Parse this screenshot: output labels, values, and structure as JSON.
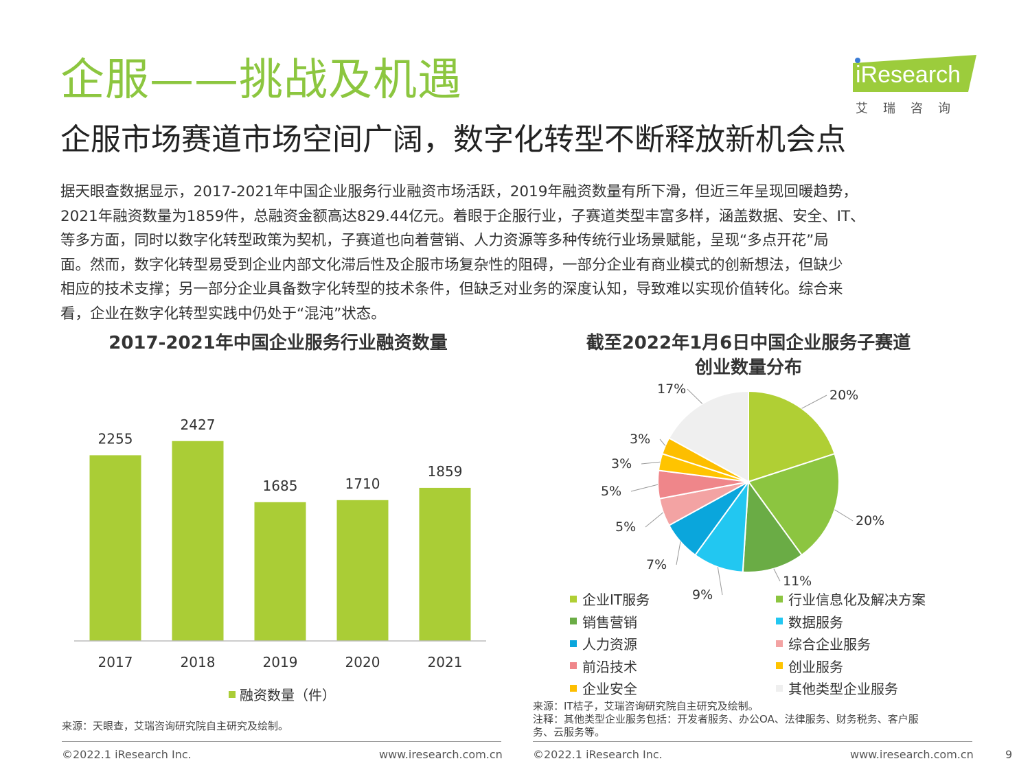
{
  "header": {
    "title": "企服——挑战及机遇",
    "subtitle": "企服市场赛道市场空间广阔，数字化转型不断释放新机会点"
  },
  "logo": {
    "text": "iResearch",
    "cn": "艾瑞咨询",
    "band_color": "#9ccc3c"
  },
  "paragraph": [
    "据天眼查数据显示，2017-2021年中国企业服务行业融资市场活跃，2019年融资数量有所下滑，但近三年呈现回暖趋势，",
    "2021年融资数量为1859件，总融资金额高达829.44亿元。着眼于企服行业，子赛道类型丰富多样，涵盖数据、安全、IT、",
    "等多方面，同时以数字化转型政策为契机，子赛道也向着营销、人力资源等多种传统行业场景赋能，呈现“多点开花”局",
    "面。然而，数字化转型易受到企业内部文化滞后性及企服市场复杂性的阻碍，一部分企业有商业模式的创新想法，但缺少",
    "相应的技术支撑；另一部分企业具备数字化转型的技术条件，但缺乏对业务的深度认知，导致难以实现价值转化。综合来",
    "看，企业在数字化转型实践中仍处于“混沌”状态。"
  ],
  "chart_data": [
    {
      "type": "bar",
      "title": "2017-2021年中国企业服务行业融资数量",
      "categories": [
        "2017",
        "2018",
        "2019",
        "2020",
        "2021"
      ],
      "series": [
        {
          "name": "融资数量（件）",
          "values": [
            2255,
            2427,
            1685,
            1710,
            1859
          ],
          "color": "#aacd36"
        }
      ],
      "value_labels": [
        "2255",
        "2427",
        "1685",
        "1710",
        "1859"
      ],
      "ylim": [
        0,
        2700
      ],
      "grid": false,
      "legend": "bottom"
    },
    {
      "type": "pie",
      "title_line1": "截至2022年1月6日中国企业服务子赛道",
      "title_line2": "创业数量分布",
      "labels": [
        "企业IT服务",
        "行业信息化及解决方案",
        "销售营销",
        "数据服务",
        "人力资源",
        "综合企业服务",
        "前沿技术",
        "创业服务",
        "企业安全",
        "其他类型企业服务"
      ],
      "values": [
        20,
        20,
        11,
        9,
        7,
        5,
        5,
        3,
        3,
        17
      ],
      "value_labels": [
        "20%",
        "20%",
        "11%",
        "9%",
        "7%",
        "5%",
        "5%",
        "3%",
        "3%",
        "17%"
      ],
      "colors": [
        "#b0cf34",
        "#8cc540",
        "#6aac45",
        "#22c7f1",
        "#0aa6dc",
        "#f3a3a3",
        "#ef868a",
        "#ffc400",
        "#fdbe00",
        "#efefef"
      ],
      "legend": "bottom"
    }
  ],
  "sources": {
    "left": "来源：天眼查，艾瑞咨询研究院自主研究及绘制。",
    "right_line1": "来源：IT桔子，艾瑞咨询研究院自主研究及绘制。",
    "right_line2": "注释：其他类型企业服务包括：开发者服务、办公OA、法律服务、财务税务、客户服",
    "right_line3": "务、云服务等。"
  },
  "footer": {
    "copyright_left": "©2022.1 iResearch Inc.",
    "url_left": "www.iresearch.com.cn",
    "copyright_right": "©2022.1 iResearch Inc.",
    "url_right": "www.iresearch.com.cn",
    "page": "9"
  }
}
